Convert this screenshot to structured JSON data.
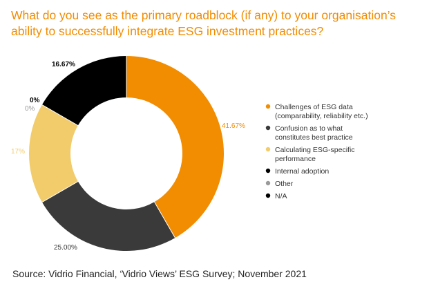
{
  "title": "What do you see as the primary roadblock (if any) to your organisation’s ability to successfully integrate ESG investment practices?",
  "source": "Source: Vidrio Financial, ‘Vidrio Views’ ESG Survey; November 2021",
  "chart_data": {
    "type": "pie",
    "variant": "donut",
    "start_angle_deg": 0,
    "direction": "clockwise",
    "slices": [
      {
        "legend_label": [
          "Challenges of ESG data",
          "(comparability, reliability etc.)"
        ],
        "value": 41.67,
        "value_label": "41.67%",
        "color": "#f28c00",
        "label_color": "#f28c00",
        "label_weight": "normal"
      },
      {
        "legend_label": [
          "Confusion as to what",
          "constitutes best practice"
        ],
        "value": 25.0,
        "value_label": "25.00%",
        "color": "#3a3a3a",
        "label_color": "#333333",
        "label_weight": "normal"
      },
      {
        "legend_label": [
          "Calculating ESG-specific",
          "performance"
        ],
        "value": 16.67,
        "value_label": "17%",
        "color": "#f2cc6b",
        "label_color": "#f2cc6b",
        "label_weight": "normal"
      },
      {
        "legend_label": [
          "Internal adoption"
        ],
        "value": 0,
        "value_label": "0%",
        "color": "#000000",
        "label_color": "#000000",
        "label_weight": "bold"
      },
      {
        "legend_label": [
          "Other"
        ],
        "value": 0,
        "value_label": "0%",
        "color": "#9a9a9a",
        "label_color": "#9a9a9a",
        "label_weight": "normal"
      },
      {
        "legend_label": [
          "N/A"
        ],
        "value": 16.67,
        "value_label": "16.67%",
        "color": "#000000",
        "label_color": "#000000",
        "label_weight": "bold"
      }
    ],
    "legend_position": "right"
  }
}
